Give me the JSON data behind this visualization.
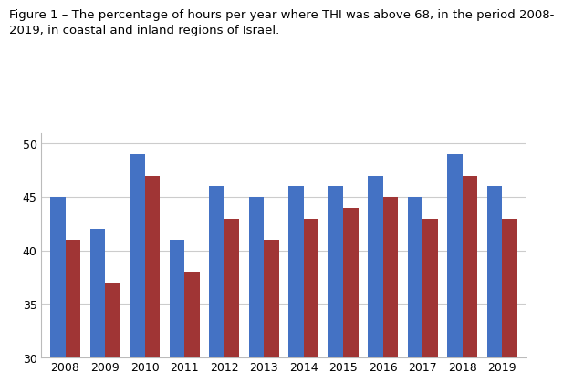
{
  "title_line1": "Figure 1 – The percentage of hours per year where THI was above 68, in the period 2008-",
  "title_line2": "2019, in coastal and inland regions of Israel.",
  "years": [
    2008,
    2009,
    2010,
    2011,
    2012,
    2013,
    2014,
    2015,
    2016,
    2017,
    2018,
    2019
  ],
  "coastal": [
    45,
    42,
    49,
    41,
    46,
    45,
    46,
    46,
    47,
    45,
    49,
    46
  ],
  "inland": [
    41,
    37,
    47,
    38,
    43,
    41,
    43,
    44,
    45,
    43,
    47,
    43
  ],
  "color_coastal": "#4472C4",
  "color_inland": "#A03535",
  "ylim": [
    30,
    51
  ],
  "yticks": [
    30,
    35,
    40,
    45,
    50
  ],
  "bar_width": 0.38,
  "background_color": "#FFFFFF",
  "plot_bg_color": "#FFFFFF",
  "grid_color": "#CCCCCC",
  "title_fontsize": 9.5,
  "tick_fontsize": 9.0
}
